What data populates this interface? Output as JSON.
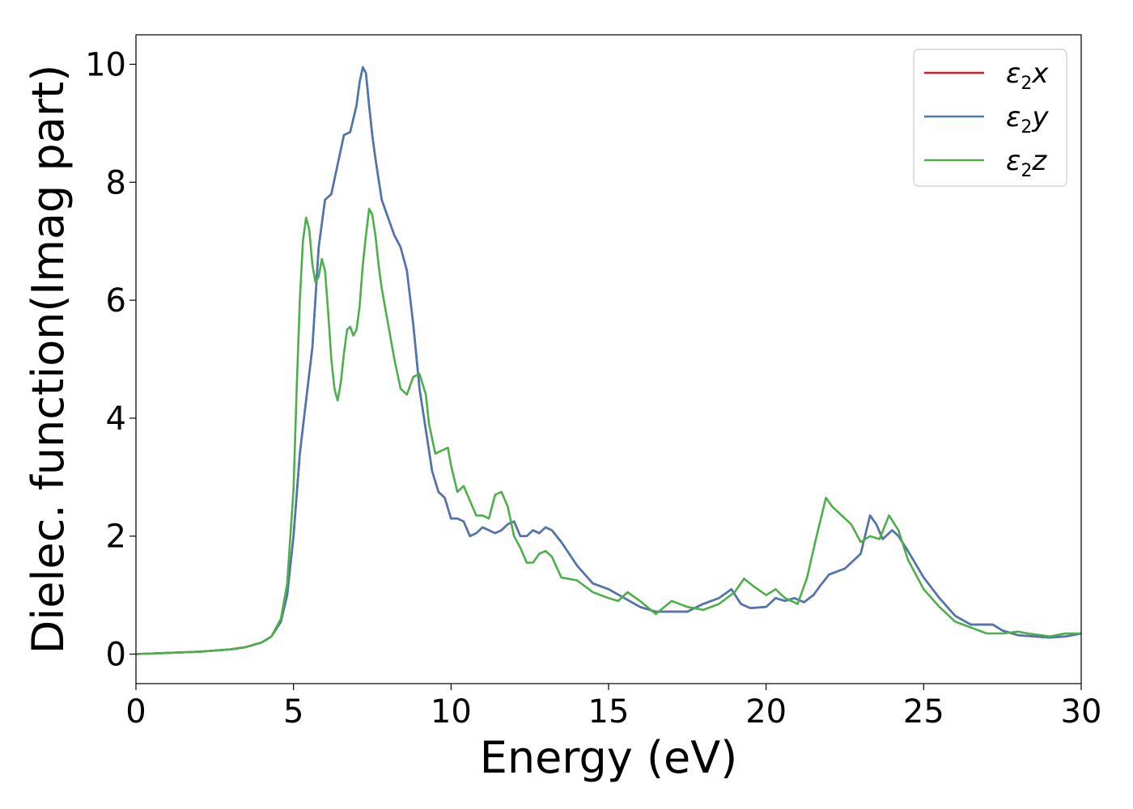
{
  "chart_data": {
    "type": "line",
    "xlabel": "Energy (eV)",
    "ylabel": "Dielec. function(Imag part)",
    "xlim": [
      0,
      30
    ],
    "ylim": [
      -0.5,
      10.5
    ],
    "xticks": [
      "0",
      "5",
      "10",
      "15",
      "20",
      "25",
      "30"
    ],
    "yticks": [
      "0",
      "2",
      "4",
      "6",
      "8",
      "10"
    ],
    "grid": false,
    "legend_position": "top-right",
    "series": [
      {
        "name": "ε2x",
        "legend_base": "ε",
        "legend_sub": "2",
        "legend_var": "x",
        "color": "#e41a1c",
        "x": [
          0,
          1,
          2,
          3,
          3.5,
          4,
          4.3,
          4.6,
          4.8,
          5.0,
          5.2,
          5.4,
          5.6,
          5.8,
          6.0,
          6.2,
          6.4,
          6.6,
          6.8,
          7.0,
          7.1,
          7.2,
          7.3,
          7.4,
          7.5,
          7.6,
          7.8,
          8.0,
          8.2,
          8.4,
          8.6,
          8.8,
          9.0,
          9.2,
          9.4,
          9.6,
          9.8,
          10.0,
          10.2,
          10.4,
          10.6,
          10.8,
          11.0,
          11.2,
          11.4,
          11.6,
          11.8,
          12.0,
          12.2,
          12.4,
          12.6,
          12.8,
          13.0,
          13.2,
          13.5,
          14.0,
          14.5,
          15.0,
          15.5,
          16.0,
          16.5,
          17.0,
          17.5,
          18.0,
          18.5,
          18.9,
          19.2,
          19.5,
          20.0,
          20.3,
          20.6,
          20.9,
          21.2,
          21.5,
          21.7,
          22.0,
          22.5,
          23.0,
          23.3,
          23.5,
          23.7,
          24.0,
          24.2,
          24.5,
          25.0,
          25.5,
          26.0,
          26.5,
          27.0,
          27.2,
          27.5,
          28.0,
          28.5,
          29.0,
          29.5,
          30.0
        ],
        "y": [
          0.0,
          0.02,
          0.04,
          0.08,
          0.12,
          0.2,
          0.3,
          0.55,
          1.0,
          2.0,
          3.4,
          4.3,
          5.2,
          6.9,
          7.7,
          7.8,
          8.3,
          8.8,
          8.85,
          9.3,
          9.7,
          9.95,
          9.85,
          9.3,
          8.8,
          8.4,
          7.7,
          7.4,
          7.1,
          6.9,
          6.5,
          5.6,
          4.5,
          3.8,
          3.1,
          2.75,
          2.65,
          2.3,
          2.3,
          2.25,
          2.0,
          2.05,
          2.15,
          2.1,
          2.05,
          2.1,
          2.2,
          2.25,
          2.0,
          2.0,
          2.1,
          2.05,
          2.15,
          2.1,
          1.9,
          1.5,
          1.2,
          1.1,
          0.95,
          0.8,
          0.72,
          0.72,
          0.72,
          0.85,
          0.95,
          1.1,
          0.85,
          0.78,
          0.8,
          0.95,
          0.9,
          0.95,
          0.88,
          1.0,
          1.15,
          1.35,
          1.45,
          1.7,
          2.35,
          2.2,
          1.95,
          2.1,
          2.0,
          1.75,
          1.3,
          0.95,
          0.65,
          0.5,
          0.5,
          0.5,
          0.4,
          0.32,
          0.3,
          0.28,
          0.3,
          0.35
        ]
      },
      {
        "name": "ε2y",
        "legend_base": "ε",
        "legend_sub": "2",
        "legend_var": "y",
        "color": "#4a78b0",
        "x": [
          0,
          1,
          2,
          3,
          3.5,
          4,
          4.3,
          4.6,
          4.8,
          5.0,
          5.2,
          5.4,
          5.6,
          5.8,
          6.0,
          6.2,
          6.4,
          6.6,
          6.8,
          7.0,
          7.1,
          7.2,
          7.3,
          7.4,
          7.5,
          7.6,
          7.8,
          8.0,
          8.2,
          8.4,
          8.6,
          8.8,
          9.0,
          9.2,
          9.4,
          9.6,
          9.8,
          10.0,
          10.2,
          10.4,
          10.6,
          10.8,
          11.0,
          11.2,
          11.4,
          11.6,
          11.8,
          12.0,
          12.2,
          12.4,
          12.6,
          12.8,
          13.0,
          13.2,
          13.5,
          14.0,
          14.5,
          15.0,
          15.5,
          16.0,
          16.5,
          17.0,
          17.5,
          18.0,
          18.5,
          18.9,
          19.2,
          19.5,
          20.0,
          20.3,
          20.6,
          20.9,
          21.2,
          21.5,
          21.7,
          22.0,
          22.5,
          23.0,
          23.3,
          23.5,
          23.7,
          24.0,
          24.2,
          24.5,
          25.0,
          25.5,
          26.0,
          26.5,
          27.0,
          27.2,
          27.5,
          28.0,
          28.5,
          29.0,
          29.5,
          30.0
        ],
        "y": [
          0.0,
          0.02,
          0.04,
          0.08,
          0.12,
          0.2,
          0.3,
          0.55,
          1.0,
          2.0,
          3.4,
          4.3,
          5.2,
          6.9,
          7.7,
          7.8,
          8.3,
          8.8,
          8.85,
          9.3,
          9.7,
          9.95,
          9.85,
          9.3,
          8.8,
          8.4,
          7.7,
          7.4,
          7.1,
          6.9,
          6.5,
          5.6,
          4.5,
          3.8,
          3.1,
          2.75,
          2.65,
          2.3,
          2.3,
          2.25,
          2.0,
          2.05,
          2.15,
          2.1,
          2.05,
          2.1,
          2.2,
          2.25,
          2.0,
          2.0,
          2.1,
          2.05,
          2.15,
          2.1,
          1.9,
          1.5,
          1.2,
          1.1,
          0.95,
          0.8,
          0.72,
          0.72,
          0.72,
          0.85,
          0.95,
          1.1,
          0.85,
          0.78,
          0.8,
          0.95,
          0.9,
          0.95,
          0.88,
          1.0,
          1.15,
          1.35,
          1.45,
          1.7,
          2.35,
          2.2,
          1.95,
          2.1,
          2.0,
          1.75,
          1.3,
          0.95,
          0.65,
          0.5,
          0.5,
          0.5,
          0.4,
          0.32,
          0.3,
          0.28,
          0.3,
          0.35
        ]
      },
      {
        "name": "ε2z",
        "legend_base": "ε",
        "legend_sub": "2",
        "legend_var": "z",
        "color": "#4daf4a",
        "x": [
          0,
          1,
          2,
          3,
          3.5,
          4,
          4.3,
          4.6,
          4.8,
          5.0,
          5.1,
          5.2,
          5.3,
          5.4,
          5.5,
          5.6,
          5.7,
          5.8,
          5.9,
          6.0,
          6.1,
          6.2,
          6.3,
          6.4,
          6.5,
          6.6,
          6.7,
          6.8,
          6.9,
          7.0,
          7.1,
          7.2,
          7.3,
          7.4,
          7.5,
          7.6,
          7.7,
          7.8,
          7.9,
          8.0,
          8.2,
          8.4,
          8.6,
          8.8,
          9.0,
          9.2,
          9.3,
          9.5,
          9.7,
          9.9,
          10.0,
          10.2,
          10.4,
          10.6,
          10.8,
          11.0,
          11.2,
          11.4,
          11.6,
          11.8,
          12.0,
          12.2,
          12.4,
          12.6,
          12.8,
          13.0,
          13.2,
          13.5,
          14.0,
          14.5,
          15.0,
          15.3,
          15.6,
          16.0,
          16.5,
          17.0,
          17.5,
          18.0,
          18.5,
          19.0,
          19.3,
          19.6,
          20.0,
          20.3,
          20.6,
          21.0,
          21.3,
          21.6,
          21.9,
          22.1,
          22.4,
          22.7,
          23.0,
          23.3,
          23.6,
          23.9,
          24.2,
          24.5,
          25.0,
          25.5,
          26.0,
          26.5,
          27.0,
          27.5,
          28.0,
          28.3,
          28.6,
          29.0,
          29.5,
          30.0
        ],
        "y": [
          0.0,
          0.02,
          0.04,
          0.08,
          0.12,
          0.2,
          0.3,
          0.6,
          1.2,
          2.8,
          4.5,
          6.0,
          7.0,
          7.4,
          7.2,
          6.6,
          6.3,
          6.4,
          6.7,
          6.5,
          5.8,
          5.0,
          4.5,
          4.3,
          4.6,
          5.1,
          5.5,
          5.55,
          5.4,
          5.5,
          5.9,
          6.6,
          7.1,
          7.55,
          7.45,
          7.1,
          6.6,
          6.2,
          5.9,
          5.6,
          5.0,
          4.5,
          4.4,
          4.7,
          4.75,
          4.4,
          3.9,
          3.4,
          3.45,
          3.5,
          3.2,
          2.75,
          2.85,
          2.6,
          2.35,
          2.35,
          2.3,
          2.7,
          2.75,
          2.5,
          2.0,
          1.8,
          1.55,
          1.55,
          1.7,
          1.75,
          1.65,
          1.3,
          1.25,
          1.05,
          0.95,
          0.9,
          1.05,
          0.9,
          0.68,
          0.9,
          0.8,
          0.75,
          0.85,
          1.05,
          1.28,
          1.15,
          1.0,
          1.1,
          0.95,
          0.85,
          1.3,
          2.0,
          2.65,
          2.5,
          2.35,
          2.2,
          1.9,
          2.0,
          1.95,
          2.35,
          2.1,
          1.6,
          1.1,
          0.8,
          0.55,
          0.45,
          0.35,
          0.35,
          0.38,
          0.35,
          0.33,
          0.3,
          0.35,
          0.35
        ]
      }
    ]
  }
}
